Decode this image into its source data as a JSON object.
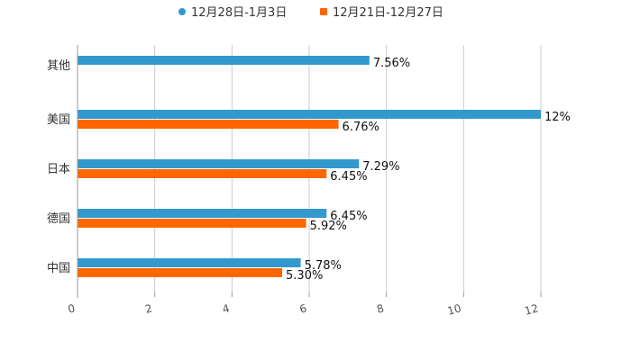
{
  "chart_data": {
    "type": "bar",
    "orientation": "horizontal",
    "title": "",
    "xlabel": "",
    "ylabel": "",
    "xlim": [
      0,
      12
    ],
    "xticks": [
      0,
      2,
      4,
      6,
      8,
      10,
      12
    ],
    "xtick_labels": [
      "0",
      "2",
      "4",
      "6",
      "8",
      "10",
      "12"
    ],
    "grid": true,
    "legend_position": "top-center",
    "categories": [
      "其他",
      "美国",
      "日本",
      "德国",
      "中国"
    ],
    "series": [
      {
        "name": "12月28日-1月3日",
        "color": "#3399cc",
        "values": [
          7.56,
          12,
          7.29,
          6.45,
          5.78
        ],
        "labels": [
          "7.56%",
          "12%",
          "7.29%",
          "6.45%",
          "5.78%"
        ]
      },
      {
        "name": "12月21日-12月27日",
        "color": "#ff6600",
        "values": [
          null,
          6.76,
          6.45,
          5.92,
          5.3
        ],
        "labels": [
          "",
          "6.76%",
          "6.45%",
          "5.92%",
          "5.30%"
        ]
      }
    ]
  }
}
